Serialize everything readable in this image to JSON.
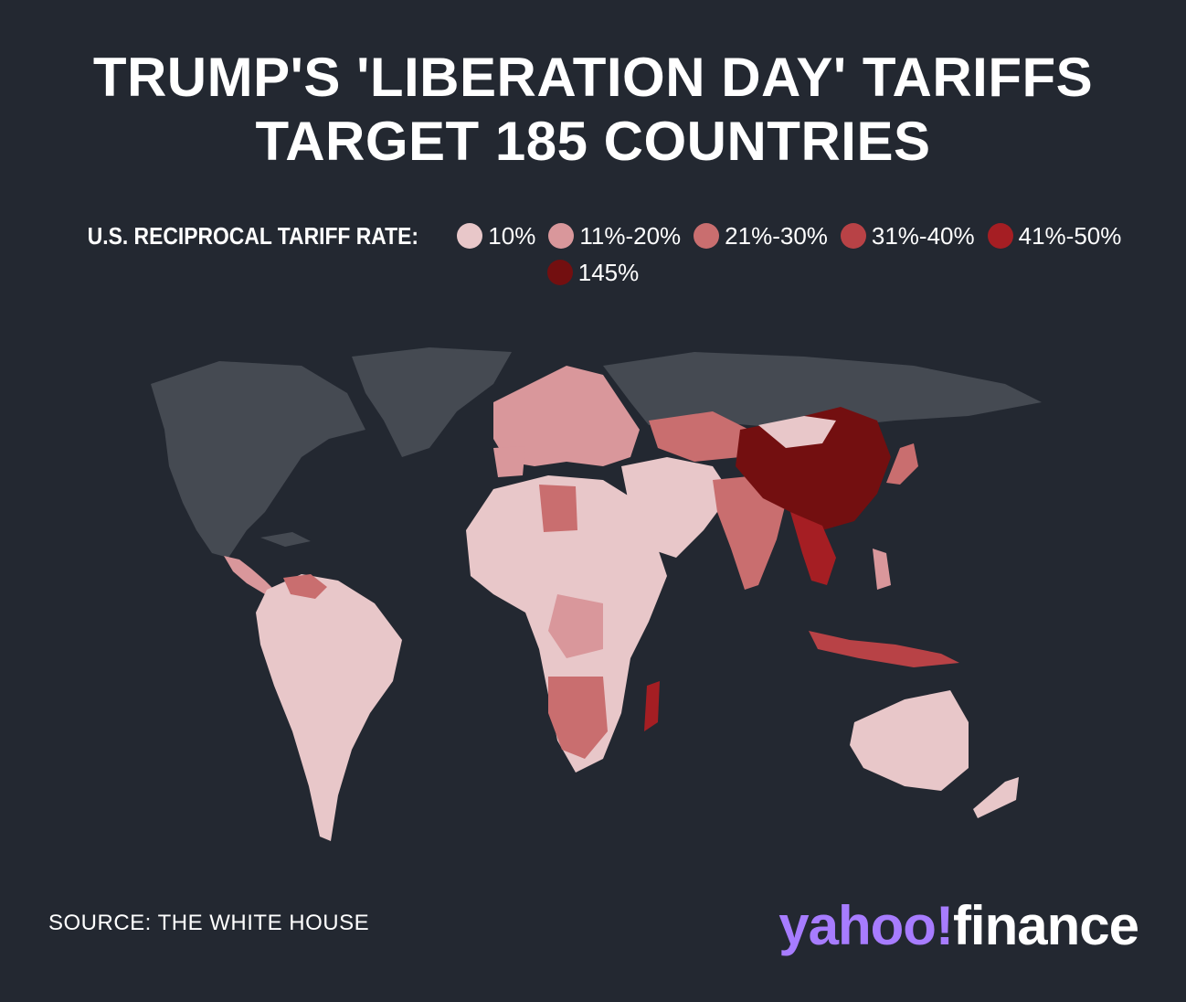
{
  "title": {
    "line1": "TRUMP'S 'LIBERATION DAY' TARIFFS",
    "line2": "TARGET 185 COUNTRIES"
  },
  "legend": {
    "label": "U.S. RECIPROCAL TARIFF RATE:",
    "items": [
      {
        "label": "10%",
        "color": "#e8c7c9"
      },
      {
        "label": "11%-20%",
        "color": "#d9979b"
      },
      {
        "label": "21%-30%",
        "color": "#c96e6f"
      },
      {
        "label": "31%-40%",
        "color": "#b84246"
      },
      {
        "label": "41%-50%",
        "color": "#a51e23"
      },
      {
        "label": "145%",
        "color": "#730f10"
      }
    ]
  },
  "map": {
    "land_color_untargeted": "#454a52",
    "ocean_color": "#232831",
    "regions": {
      "north_america": "untargeted",
      "south_america": "10%",
      "africa": "mixed",
      "china": "145%",
      "australia": "10%",
      "russia": "untargeted"
    }
  },
  "source": "SOURCE: THE WHITE HOUSE",
  "logo": {
    "yahoo": "yahoo",
    "bang": "!",
    "finance": "finance"
  }
}
